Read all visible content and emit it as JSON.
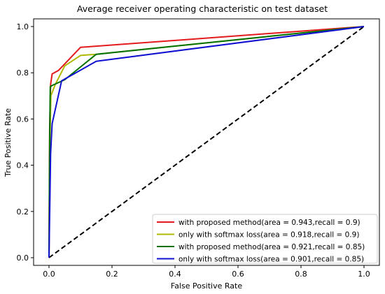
{
  "chart_data": {
    "type": "line",
    "title": "Average receiver operating characteristic on test dataset",
    "xlabel": "False Positive Rate",
    "ylabel": "True Positive Rate",
    "xlim": [
      0.0,
      1.0
    ],
    "ylim": [
      0.0,
      1.0
    ],
    "xticks": [
      "0.0",
      "0.2",
      "0.4",
      "0.6",
      "0.8",
      "1.0"
    ],
    "yticks": [
      "0.0",
      "0.2",
      "0.4",
      "0.6",
      "0.8",
      "1.0"
    ],
    "grid": false,
    "legend_position": "lower-right",
    "series": [
      {
        "name": "with proposed method(area = 0.943,recall = 0.9)",
        "color": "#e41a1c",
        "x": [
          0.0,
          0.002,
          0.005,
          0.01,
          0.03,
          0.1,
          0.4,
          1.0
        ],
        "y": [
          0.0,
          0.55,
          0.75,
          0.795,
          0.81,
          0.91,
          0.94,
          1.0
        ]
      },
      {
        "name": "only with softmax loss(area = 0.918,recall = 0.9)",
        "color": "#b0b800",
        "x": [
          0.0,
          0.003,
          0.006,
          0.02,
          0.05,
          0.1,
          0.15,
          1.0
        ],
        "y": [
          0.0,
          0.5,
          0.7,
          0.75,
          0.83,
          0.875,
          0.88,
          1.0
        ]
      },
      {
        "name": "with proposed method(area = 0.921,recall = 0.85)",
        "color": "#007000",
        "x": [
          0.0,
          0.002,
          0.004,
          0.01,
          0.05,
          0.15,
          1.0
        ],
        "y": [
          0.0,
          0.5,
          0.74,
          0.745,
          0.77,
          0.88,
          1.0
        ]
      },
      {
        "name": "only with softmax loss(area = 0.901,recall = 0.85)",
        "color": "#1010d0",
        "x": [
          0.0,
          0.005,
          0.01,
          0.04,
          0.15,
          1.0
        ],
        "y": [
          0.0,
          0.45,
          0.58,
          0.765,
          0.85,
          1.0
        ]
      }
    ],
    "reference_line": {
      "x": [
        0.0,
        1.0
      ],
      "y": [
        0.0,
        1.0
      ],
      "color": "#000000",
      "style": "dashed"
    }
  }
}
